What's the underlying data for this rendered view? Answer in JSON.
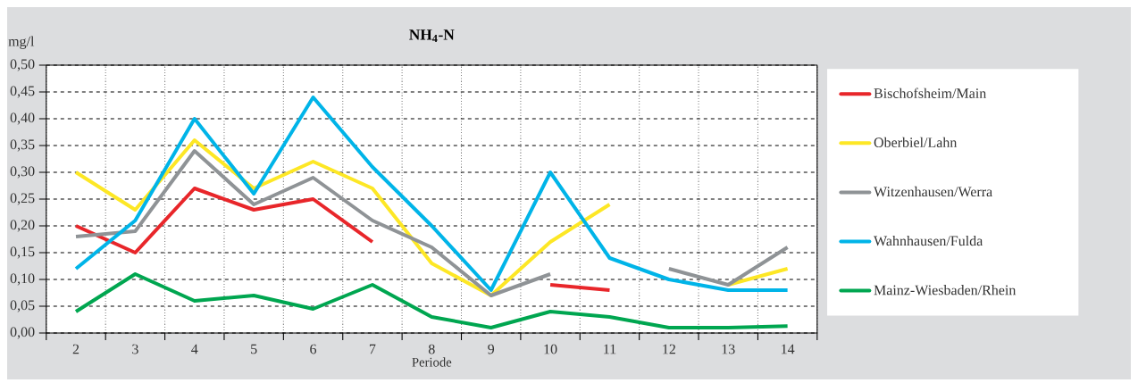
{
  "chart_data": {
    "type": "line",
    "title": "NH$_{4}$-N",
    "ylabel": "mg/l",
    "xlabel": "Periode",
    "categories": [
      "2",
      "3",
      "4",
      "5",
      "6",
      "7",
      "8",
      "9",
      "10",
      "11",
      "12",
      "13",
      "14"
    ],
    "series": [
      {
        "name": "Bischofsheim/Main",
        "color": "#e8262a",
        "values": [
          0.2,
          0.15,
          0.27,
          0.23,
          0.25,
          0.17,
          null,
          null,
          0.09,
          0.08,
          null,
          null,
          null
        ]
      },
      {
        "name": "Oberbiel/Lahn",
        "color": "#fde725",
        "values": [
          0.3,
          0.23,
          0.36,
          0.27,
          0.32,
          0.27,
          0.13,
          0.07,
          0.17,
          0.24,
          null,
          0.09,
          0.12
        ]
      },
      {
        "name": "Witzenhausen/Werra",
        "color": "#8f9396",
        "values": [
          0.18,
          0.19,
          0.34,
          0.24,
          0.29,
          0.21,
          0.16,
          0.07,
          0.11,
          null,
          0.12,
          0.09,
          0.16
        ]
      },
      {
        "name": "Wahnhausen/Fulda",
        "color": "#00b4e8",
        "values": [
          0.12,
          0.21,
          0.4,
          0.26,
          0.44,
          0.31,
          0.2,
          0.08,
          0.3,
          0.14,
          0.1,
          0.08,
          0.08
        ]
      },
      {
        "name": "Mainz-Wiesbaden/Rhein",
        "color": "#00a650",
        "values": [
          0.04,
          0.11,
          0.06,
          0.07,
          0.045,
          0.09,
          0.03,
          0.01,
          0.04,
          0.03,
          0.01,
          0.01,
          0.013
        ]
      }
    ],
    "ylim": [
      0,
      0.5
    ],
    "yticks": [
      {
        "value": 0,
        "label": "0,00"
      },
      {
        "value": 0.05,
        "label": "0,05"
      },
      {
        "value": 0.1,
        "label": "0,10"
      },
      {
        "value": 0.15,
        "label": "0,15"
      },
      {
        "value": 0.2,
        "label": "0,20"
      },
      {
        "value": 0.25,
        "label": "0,25"
      },
      {
        "value": 0.3,
        "label": "0,30"
      },
      {
        "value": 0.35,
        "label": "0,35"
      },
      {
        "value": 0.4,
        "label": "0,40"
      },
      {
        "value": 0.45,
        "label": "0,45"
      },
      {
        "value": 0.5,
        "label": "0,50"
      }
    ],
    "grid": true,
    "legend": "right",
    "marker": "none",
    "line_style": "solid"
  }
}
